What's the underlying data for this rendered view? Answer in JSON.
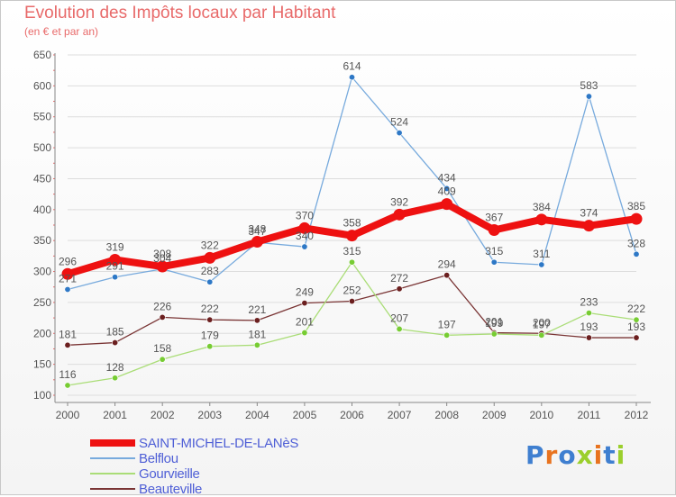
{
  "header": {
    "title": "Evolution des Impôts locaux par Habitant",
    "subtitle": "(en € et par an)"
  },
  "logo": {
    "text": "Proxiti",
    "colors": [
      "#3f7fd0",
      "#e8731f",
      "#3f7fd0",
      "#9bcf2c",
      "#e8731f",
      "#3f7fd0",
      "#9bcf2c"
    ]
  },
  "colors": {
    "title": "#e86a6a",
    "axis": "#555555",
    "grid": "#dddddd",
    "label": "#555555"
  },
  "chart_data": {
    "type": "line",
    "title": "Evolution des Impôts locaux par Habitant",
    "subtitle": "(en € et par an)",
    "xlabel": "",
    "ylabel": "",
    "x": [
      "2000",
      "2001",
      "2002",
      "2003",
      "2004",
      "2005",
      "2006",
      "2007",
      "2008",
      "2009",
      "2010",
      "2011",
      "2012"
    ],
    "ylim": [
      100,
      650
    ],
    "yticks": [
      100,
      150,
      200,
      250,
      300,
      350,
      400,
      450,
      500,
      550,
      600,
      650
    ],
    "grid": true,
    "legend_position": "bottom-left",
    "series": [
      {
        "name": "SAINT-MICHEL-DE-LANèS",
        "color": "#ee1111",
        "marker": "#ee1111",
        "width": 8,
        "values": [
          296,
          319,
          308,
          322,
          348,
          370,
          358,
          392,
          409,
          367,
          384,
          374,
          385
        ]
      },
      {
        "name": "Belflou",
        "color": "#77aadd",
        "marker": "#2e78c6",
        "width": 1.3,
        "values": [
          271,
          291,
          304,
          283,
          347,
          340,
          614,
          524,
          434,
          315,
          311,
          583,
          328
        ]
      },
      {
        "name": "Gourvieille",
        "color": "#aadd77",
        "marker": "#77cc33",
        "width": 1.3,
        "values": [
          116,
          128,
          158,
          179,
          181,
          201,
          315,
          207,
          197,
          199,
          197,
          233,
          222
        ]
      },
      {
        "name": "Beauteville",
        "color": "#7a3535",
        "marker": "#6b1f1f",
        "width": 1.3,
        "values": [
          181,
          185,
          226,
          222,
          221,
          249,
          252,
          272,
          294,
          201,
          200,
          193,
          193
        ]
      }
    ]
  }
}
